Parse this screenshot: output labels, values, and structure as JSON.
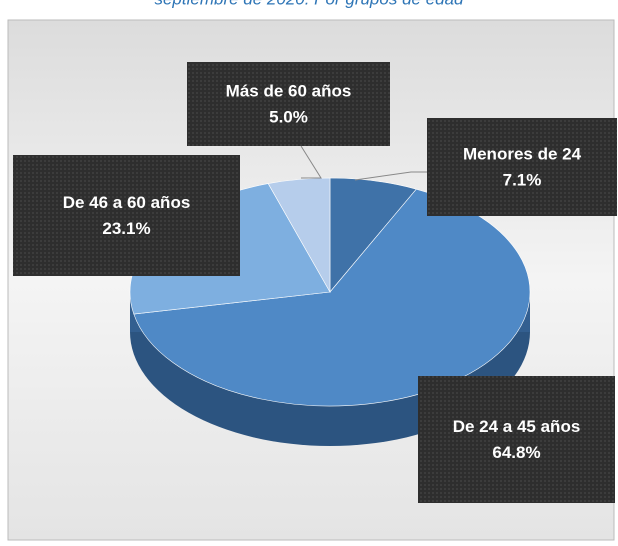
{
  "chart_data": {
    "type": "pie",
    "title": "septiembre de 2020. Por grupos de edad",
    "categories": [
      "Menores de 24",
      "De 24 a 45 años",
      "De 46 a 60 años",
      "Más de 60 años"
    ],
    "values": [
      7.1,
      64.8,
      23.1,
      5.0
    ],
    "value_labels": [
      "7.1%",
      "64.8%",
      "23.1%",
      "5.0%"
    ],
    "colors": [
      "#3f72a8",
      "#4f89c6",
      "#7eafe0",
      "#b6cdeb"
    ]
  }
}
